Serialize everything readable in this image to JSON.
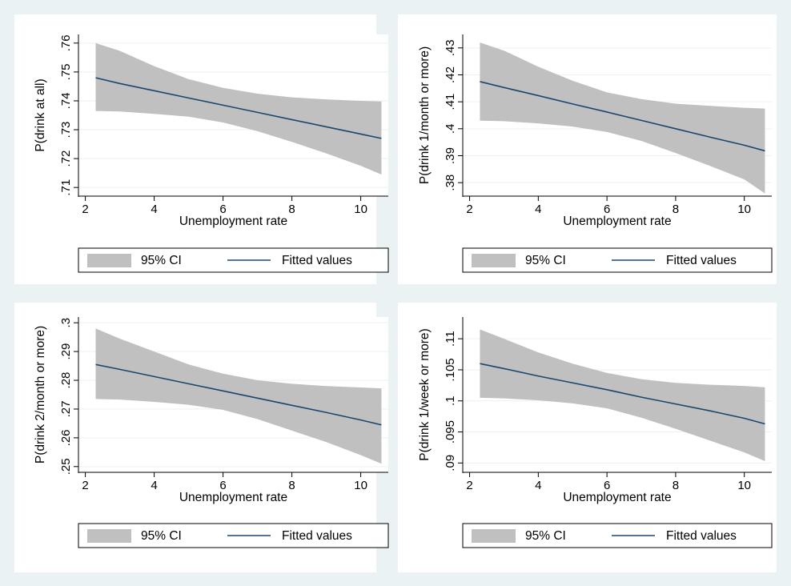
{
  "figure": {
    "background": "#eaf2f3",
    "panel_background": "#ffffff",
    "band_color": "#c0c0c0",
    "line_color": "#1a476f"
  },
  "chart_data": [
    {
      "type": "line",
      "xlabel": "Unemployment rate",
      "ylabel": "P(drink at all)",
      "xlim": [
        1.8,
        10.8
      ],
      "ylim": [
        0.707,
        0.763
      ],
      "xticks": [
        2,
        4,
        6,
        8,
        10
      ],
      "yticks": [
        0.71,
        0.72,
        0.73,
        0.74,
        0.75,
        0.76
      ],
      "ytick_labels": [
        ".71",
        ".72",
        ".73",
        ".74",
        ".75",
        ".76"
      ],
      "x": [
        2.3,
        3.0,
        4.0,
        5.0,
        6.0,
        7.0,
        8.0,
        9.0,
        10.0,
        10.6
      ],
      "series": [
        {
          "name": "Fitted values",
          "values": [
            0.748,
            0.746,
            0.7435,
            0.741,
            0.7385,
            0.736,
            0.7335,
            0.731,
            0.7285,
            0.727
          ]
        },
        {
          "name": "95% CI",
          "lower": [
            0.7365,
            0.7363,
            0.7355,
            0.7345,
            0.7325,
            0.7295,
            0.7258,
            0.7218,
            0.7175,
            0.7145
          ],
          "upper": [
            0.76,
            0.7573,
            0.752,
            0.7475,
            0.7445,
            0.7425,
            0.7412,
            0.7405,
            0.74,
            0.7398
          ]
        }
      ],
      "legend": [
        "95% CI",
        "Fitted values"
      ],
      "legend_placement": "bottom",
      "grid": true
    },
    {
      "type": "line",
      "xlabel": "Unemployment rate",
      "ylabel": "P(drink 1/month or more)",
      "xlim": [
        1.8,
        10.8
      ],
      "ylim": [
        0.375,
        0.435
      ],
      "xticks": [
        2,
        4,
        6,
        8,
        10
      ],
      "yticks": [
        0.38,
        0.39,
        0.4,
        0.41,
        0.42,
        0.43
      ],
      "ytick_labels": [
        ".38",
        ".39",
        ".4",
        ".41",
        ".42",
        ".43"
      ],
      "x": [
        2.3,
        3.0,
        4.0,
        5.0,
        6.0,
        7.0,
        8.0,
        9.0,
        10.0,
        10.6
      ],
      "series": [
        {
          "name": "Fitted values",
          "values": [
            0.4175,
            0.4153,
            0.4123,
            0.4092,
            0.4062,
            0.4031,
            0.4,
            0.3969,
            0.3939,
            0.3918
          ]
        },
        {
          "name": "95% CI",
          "lower": [
            0.403,
            0.4028,
            0.402,
            0.4008,
            0.3988,
            0.3955,
            0.391,
            0.3862,
            0.3812,
            0.376
          ],
          "upper": [
            0.432,
            0.429,
            0.423,
            0.4178,
            0.4135,
            0.411,
            0.4093,
            0.4085,
            0.4078,
            0.4075
          ]
        }
      ],
      "legend": [
        "95% CI",
        "Fitted values"
      ],
      "legend_placement": "bottom",
      "grid": true
    },
    {
      "type": "line",
      "xlabel": "Unemployment rate",
      "ylabel": "P(drink 2/month or more)",
      "xlim": [
        1.8,
        10.8
      ],
      "ylim": [
        0.248,
        0.302
      ],
      "xticks": [
        2,
        4,
        6,
        8,
        10
      ],
      "yticks": [
        0.25,
        0.26,
        0.27,
        0.28,
        0.29,
        0.3
      ],
      "ytick_labels": [
        ".25",
        ".26",
        ".27",
        ".28",
        ".29",
        ".3"
      ],
      "x": [
        2.3,
        3.0,
        4.0,
        5.0,
        6.0,
        7.0,
        8.0,
        9.0,
        10.0,
        10.6
      ],
      "series": [
        {
          "name": "Fitted values",
          "values": [
            0.2855,
            0.2838,
            0.2813,
            0.2788,
            0.2763,
            0.2738,
            0.2713,
            0.2688,
            0.2662,
            0.2645
          ]
        },
        {
          "name": "95% CI",
          "lower": [
            0.2735,
            0.2733,
            0.2725,
            0.2715,
            0.2697,
            0.2665,
            0.2625,
            0.2585,
            0.254,
            0.251
          ],
          "upper": [
            0.298,
            0.2945,
            0.29,
            0.2855,
            0.2823,
            0.28,
            0.2788,
            0.278,
            0.2775,
            0.2772
          ]
        }
      ],
      "legend": [
        "95% CI",
        "Fitted values"
      ],
      "legend_placement": "bottom",
      "grid": true
    },
    {
      "type": "line",
      "xlabel": "Unemployment rate",
      "ylabel": "P(drink 1/week or more)",
      "xlim": [
        1.8,
        10.8
      ],
      "ylim": [
        0.0885,
        0.1135
      ],
      "xticks": [
        2,
        4,
        6,
        8,
        10
      ],
      "yticks": [
        0.09,
        0.095,
        0.1,
        0.105,
        0.11
      ],
      "ytick_labels": [
        ".09",
        ".095",
        ".1",
        ".105",
        ".11"
      ],
      "x": [
        2.3,
        3.0,
        4.0,
        5.0,
        6.0,
        7.0,
        8.0,
        9.0,
        10.0,
        10.6
      ],
      "series": [
        {
          "name": "Fitted values",
          "values": [
            0.106,
            0.1052,
            0.104,
            0.1029,
            0.1018,
            0.1006,
            0.0995,
            0.0984,
            0.0972,
            0.0963
          ]
        },
        {
          "name": "95% CI",
          "lower": [
            0.1005,
            0.1004,
            0.1001,
            0.0996,
            0.0988,
            0.0973,
            0.0955,
            0.0936,
            0.0917,
            0.0903
          ],
          "upper": [
            0.1115,
            0.11,
            0.1078,
            0.106,
            0.1045,
            0.1035,
            0.1029,
            0.1026,
            0.1024,
            0.1022
          ]
        }
      ],
      "legend": [
        "95% CI",
        "Fitted values"
      ],
      "legend_placement": "bottom",
      "grid": true
    }
  ]
}
